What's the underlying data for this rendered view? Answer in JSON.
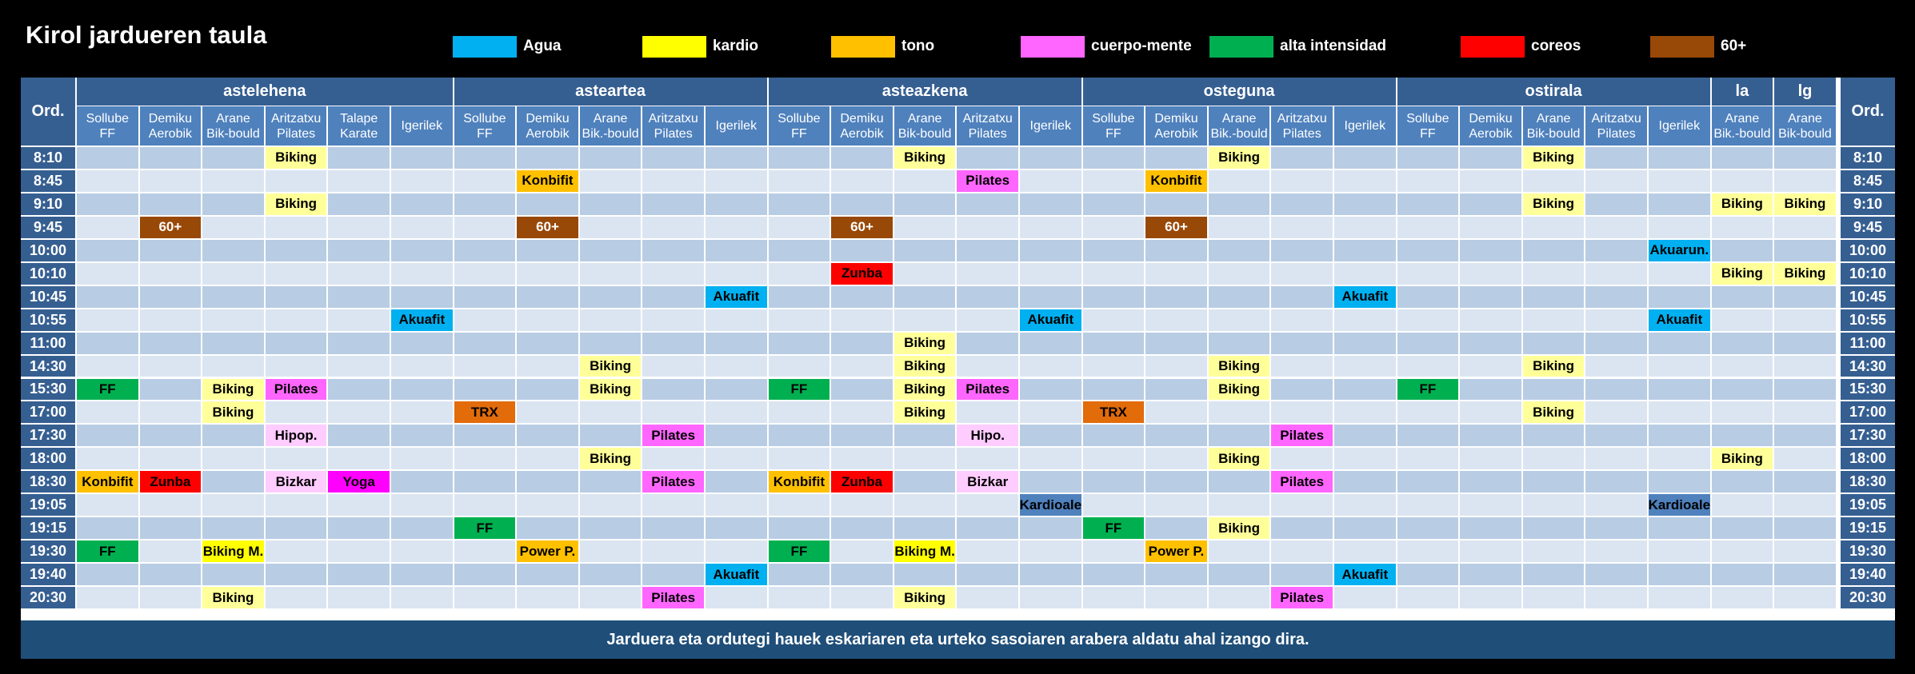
{
  "title": "Kirol jardueren taula",
  "legend": [
    {
      "label": "Agua",
      "color": "#00b0f0"
    },
    {
      "label": "kardio",
      "color": "#ffff00"
    },
    {
      "label": "tono",
      "color": "#ffc000"
    },
    {
      "label": "cuerpo-mente",
      "color": "#ff66ff"
    },
    {
      "label": "alta intensidad",
      "color": "#00b050"
    },
    {
      "label": "coreos",
      "color": "#ff0000"
    },
    {
      "label": "60+",
      "color": "#984807"
    }
  ],
  "ord_label": "Ord.",
  "days": [
    {
      "name": "astelehena"
    },
    {
      "name": "asteartea"
    },
    {
      "name": "asteazkena"
    },
    {
      "name": "osteguna"
    },
    {
      "name": "ostirala"
    },
    {
      "name": "la"
    },
    {
      "name": "lg"
    }
  ],
  "columns": [
    [
      "Sollube",
      "FF"
    ],
    [
      "Demiku",
      "Aerobik"
    ],
    [
      "Arane",
      "Bik-bould"
    ],
    [
      "Aritzatxu",
      "Pilates"
    ],
    [
      "Talape",
      "Karate"
    ],
    [
      "Igerilek",
      ""
    ],
    [
      "Sollube",
      "FF"
    ],
    [
      "Demiku",
      "Aerobik"
    ],
    [
      "Arane",
      "Bik.-bould"
    ],
    [
      "Aritzatxu",
      "Pilates"
    ],
    [
      "Igerilek",
      ""
    ],
    [
      "Sollube",
      "FF"
    ],
    [
      "Demiku",
      "Aerobik"
    ],
    [
      "Arane",
      "Bik-bould"
    ],
    [
      "Aritzatxu",
      "Pilates"
    ],
    [
      "Igerilek",
      ""
    ],
    [
      "Sollube",
      "FF"
    ],
    [
      "Demiku",
      "Aerobik"
    ],
    [
      "Arane",
      "Bik.-bould"
    ],
    [
      "Aritzatxu",
      "Pilates"
    ],
    [
      "Igerilek",
      ""
    ],
    [
      "Sollube",
      "FF"
    ],
    [
      "Demiku",
      "Aerobik"
    ],
    [
      "Arane",
      "Bik-bould"
    ],
    [
      "Aritzatxu",
      "Pilates"
    ],
    [
      "Igerilek",
      ""
    ],
    [
      "Arane",
      "Bik.-bould"
    ],
    [
      "Arane",
      "Bik-bould"
    ]
  ],
  "times": [
    "8:10",
    "8:45",
    "9:10",
    "9:45",
    "10:00",
    "10:10",
    "10:45",
    "10:55",
    "11:00",
    "14:30",
    "15:30",
    "17:00",
    "17:30",
    "18:00",
    "18:30",
    "19:05",
    "19:15",
    "19:30",
    "19:40",
    "20:30"
  ],
  "activities": [
    {
      "row": 0,
      "col": 3,
      "label": "Biking",
      "bg": "#ffff99",
      "fg": "#000000"
    },
    {
      "row": 0,
      "col": 13,
      "label": "Biking",
      "bg": "#ffff99",
      "fg": "#000000"
    },
    {
      "row": 0,
      "col": 18,
      "label": "Biking",
      "bg": "#ffff99",
      "fg": "#000000"
    },
    {
      "row": 0,
      "col": 23,
      "label": "Biking",
      "bg": "#ffff99",
      "fg": "#000000"
    },
    {
      "row": 1,
      "col": 7,
      "label": "Konbifit",
      "bg": "#ffc000",
      "fg": "#000000"
    },
    {
      "row": 1,
      "col": 14,
      "label": "Pilates",
      "bg": "#ff66ff",
      "fg": "#000000"
    },
    {
      "row": 1,
      "col": 17,
      "label": "Konbifit",
      "bg": "#ffc000",
      "fg": "#000000"
    },
    {
      "row": 2,
      "col": 3,
      "label": "Biking",
      "bg": "#ffff99",
      "fg": "#000000"
    },
    {
      "row": 2,
      "col": 23,
      "label": "Biking",
      "bg": "#ffff99",
      "fg": "#000000"
    },
    {
      "row": 2,
      "col": 26,
      "label": "Biking",
      "bg": "#ffff99",
      "fg": "#000000"
    },
    {
      "row": 2,
      "col": 27,
      "label": "Biking",
      "bg": "#ffff99",
      "fg": "#000000"
    },
    {
      "row": 3,
      "col": 1,
      "label": "60+",
      "bg": "#984807",
      "fg": "#ffffff"
    },
    {
      "row": 3,
      "col": 7,
      "label": "60+",
      "bg": "#984807",
      "fg": "#ffffff"
    },
    {
      "row": 3,
      "col": 12,
      "label": "60+",
      "bg": "#984807",
      "fg": "#ffffff"
    },
    {
      "row": 3,
      "col": 17,
      "label": "60+",
      "bg": "#984807",
      "fg": "#ffffff"
    },
    {
      "row": 4,
      "col": 25,
      "label": "Akuarun.",
      "bg": "#00b0f0",
      "fg": "#000000"
    },
    {
      "row": 5,
      "col": 12,
      "label": "Zunba",
      "bg": "#ff0000",
      "fg": "#000000"
    },
    {
      "row": 5,
      "col": 26,
      "label": "Biking",
      "bg": "#ffff99",
      "fg": "#000000"
    },
    {
      "row": 5,
      "col": 27,
      "label": "Biking",
      "bg": "#ffff99",
      "fg": "#000000"
    },
    {
      "row": 6,
      "col": 10,
      "label": "Akuafit",
      "bg": "#00b0f0",
      "fg": "#000000"
    },
    {
      "row": 6,
      "col": 20,
      "label": "Akuafit",
      "bg": "#00b0f0",
      "fg": "#000000"
    },
    {
      "row": 7,
      "col": 5,
      "label": "Akuafit",
      "bg": "#00b0f0",
      "fg": "#000000"
    },
    {
      "row": 7,
      "col": 15,
      "label": "Akuafit",
      "bg": "#00b0f0",
      "fg": "#000000"
    },
    {
      "row": 7,
      "col": 25,
      "label": "Akuafit",
      "bg": "#00b0f0",
      "fg": "#000000"
    },
    {
      "row": 8,
      "col": 13,
      "label": "Biking",
      "bg": "#ffff99",
      "fg": "#000000"
    },
    {
      "row": 9,
      "col": 8,
      "label": "Biking",
      "bg": "#ffff99",
      "fg": "#000000"
    },
    {
      "row": 9,
      "col": 13,
      "label": "Biking",
      "bg": "#ffff99",
      "fg": "#000000"
    },
    {
      "row": 9,
      "col": 18,
      "label": "Biking",
      "bg": "#ffff99",
      "fg": "#000000"
    },
    {
      "row": 9,
      "col": 23,
      "label": "Biking",
      "bg": "#ffff99",
      "fg": "#000000"
    },
    {
      "row": 10,
      "col": 0,
      "label": "FF",
      "bg": "#00b050",
      "fg": "#000000"
    },
    {
      "row": 10,
      "col": 2,
      "label": "Biking",
      "bg": "#ffff99",
      "fg": "#000000"
    },
    {
      "row": 10,
      "col": 3,
      "label": "Pilates",
      "bg": "#ff66ff",
      "fg": "#000000"
    },
    {
      "row": 10,
      "col": 8,
      "label": "Biking",
      "bg": "#ffff99",
      "fg": "#000000"
    },
    {
      "row": 10,
      "col": 11,
      "label": "FF",
      "bg": "#00b050",
      "fg": "#000000"
    },
    {
      "row": 10,
      "col": 13,
      "label": "Biking",
      "bg": "#ffff99",
      "fg": "#000000"
    },
    {
      "row": 10,
      "col": 14,
      "label": "Pilates",
      "bg": "#ff66ff",
      "fg": "#000000"
    },
    {
      "row": 10,
      "col": 18,
      "label": "Biking",
      "bg": "#ffff99",
      "fg": "#000000"
    },
    {
      "row": 10,
      "col": 21,
      "label": "FF",
      "bg": "#00b050",
      "fg": "#000000"
    },
    {
      "row": 11,
      "col": 2,
      "label": "Biking",
      "bg": "#ffff99",
      "fg": "#000000"
    },
    {
      "row": 11,
      "col": 6,
      "label": "TRX",
      "bg": "#e26b0a",
      "fg": "#000000"
    },
    {
      "row": 11,
      "col": 13,
      "label": "Biking",
      "bg": "#ffff99",
      "fg": "#000000"
    },
    {
      "row": 11,
      "col": 16,
      "label": "TRX",
      "bg": "#e26b0a",
      "fg": "#000000"
    },
    {
      "row": 11,
      "col": 23,
      "label": "Biking",
      "bg": "#ffff99",
      "fg": "#000000"
    },
    {
      "row": 12,
      "col": 3,
      "label": "Hipop.",
      "bg": "#ffccff",
      "fg": "#000000"
    },
    {
      "row": 12,
      "col": 9,
      "label": "Pilates",
      "bg": "#ff66ff",
      "fg": "#000000"
    },
    {
      "row": 12,
      "col": 14,
      "label": "Hipo.",
      "bg": "#ffccff",
      "fg": "#000000"
    },
    {
      "row": 12,
      "col": 19,
      "label": "Pilates",
      "bg": "#ff66ff",
      "fg": "#000000"
    },
    {
      "row": 13,
      "col": 8,
      "label": "Biking",
      "bg": "#ffff99",
      "fg": "#000000"
    },
    {
      "row": 13,
      "col": 18,
      "label": "Biking",
      "bg": "#ffff99",
      "fg": "#000000"
    },
    {
      "row": 13,
      "col": 26,
      "label": "Biking",
      "bg": "#ffff99",
      "fg": "#000000"
    },
    {
      "row": 14,
      "col": 0,
      "label": "Konbifit",
      "bg": "#ffc000",
      "fg": "#000000"
    },
    {
      "row": 14,
      "col": 1,
      "label": "Zunba",
      "bg": "#ff0000",
      "fg": "#000000"
    },
    {
      "row": 14,
      "col": 3,
      "label": "Bizkar",
      "bg": "#ffccff",
      "fg": "#000000"
    },
    {
      "row": 14,
      "col": 4,
      "label": "Yoga",
      "bg": "#ff00ff",
      "fg": "#000000"
    },
    {
      "row": 14,
      "col": 9,
      "label": "Pilates",
      "bg": "#ff66ff",
      "fg": "#000000"
    },
    {
      "row": 14,
      "col": 11,
      "label": "Konbifit",
      "bg": "#ffc000",
      "fg": "#000000"
    },
    {
      "row": 14,
      "col": 12,
      "label": "Zunba",
      "bg": "#ff0000",
      "fg": "#000000"
    },
    {
      "row": 14,
      "col": 14,
      "label": "Bizkar",
      "bg": "#ffccff",
      "fg": "#000000"
    },
    {
      "row": 14,
      "col": 19,
      "label": "Pilates",
      "bg": "#ff66ff",
      "fg": "#000000"
    },
    {
      "row": 15,
      "col": 15,
      "label": "Kardioale",
      "bg": "#4f81bd",
      "fg": "#000000"
    },
    {
      "row": 15,
      "col": 25,
      "label": "Kardioale",
      "bg": "#4f81bd",
      "fg": "#000000"
    },
    {
      "row": 16,
      "col": 6,
      "label": "FF",
      "bg": "#00b050",
      "fg": "#000000"
    },
    {
      "row": 16,
      "col": 16,
      "label": "FF",
      "bg": "#00b050",
      "fg": "#000000"
    },
    {
      "row": 16,
      "col": 18,
      "label": "Biking",
      "bg": "#ffff99",
      "fg": "#000000"
    },
    {
      "row": 17,
      "col": 0,
      "label": "FF",
      "bg": "#00b050",
      "fg": "#000000"
    },
    {
      "row": 17,
      "col": 2,
      "label": "Biking M.",
      "bg": "#ffff00",
      "fg": "#000000"
    },
    {
      "row": 17,
      "col": 7,
      "label": "Power P.",
      "bg": "#ffc000",
      "fg": "#000000"
    },
    {
      "row": 17,
      "col": 11,
      "label": "FF",
      "bg": "#00b050",
      "fg": "#000000"
    },
    {
      "row": 17,
      "col": 13,
      "label": "Biking M.",
      "bg": "#ffff00",
      "fg": "#000000"
    },
    {
      "row": 17,
      "col": 17,
      "label": "Power P.",
      "bg": "#ffc000",
      "fg": "#000000"
    },
    {
      "row": 18,
      "col": 10,
      "label": "Akuafit",
      "bg": "#00b0f0",
      "fg": "#000000"
    },
    {
      "row": 18,
      "col": 20,
      "label": "Akuafit",
      "bg": "#00b0f0",
      "fg": "#000000"
    },
    {
      "row": 19,
      "col": 2,
      "label": "Biking",
      "bg": "#ffff99",
      "fg": "#000000"
    },
    {
      "row": 19,
      "col": 9,
      "label": "Pilates",
      "bg": "#ff66ff",
      "fg": "#000000"
    },
    {
      "row": 19,
      "col": 13,
      "label": "Biking",
      "bg": "#ffff99",
      "fg": "#000000"
    },
    {
      "row": 19,
      "col": 19,
      "label": "Pilates",
      "bg": "#ff66ff",
      "fg": "#000000"
    }
  ],
  "footer": "Jarduera eta ordutegi hauek eskariaren eta urteko sasoiaren arabera aldatu ahal izango dira."
}
